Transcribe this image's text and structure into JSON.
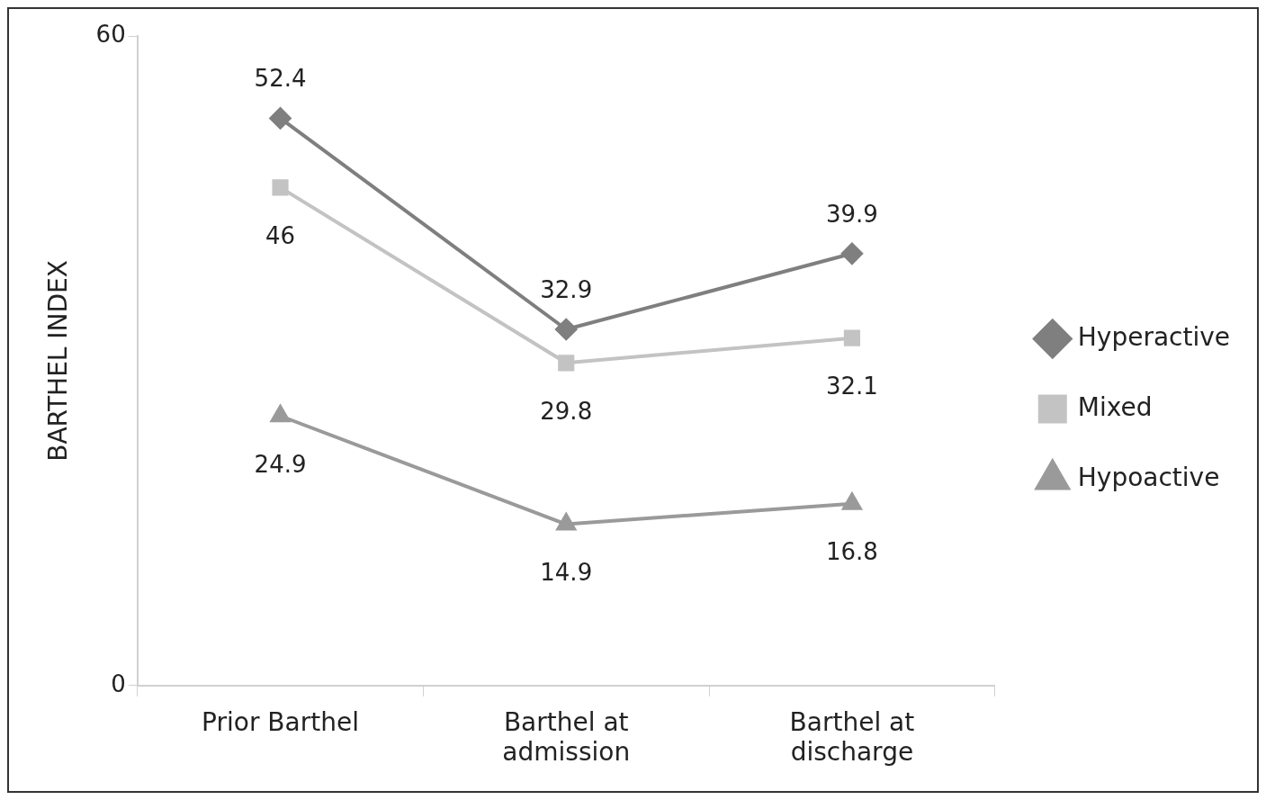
{
  "chart_data": {
    "type": "line",
    "ylabel": "BARTHEL INDEX",
    "categories": [
      "Prior Barthel",
      "Barthel at admission",
      "Barthel at discharge"
    ],
    "series": [
      {
        "name": "Hyperactive",
        "color": "#7f7f7f",
        "marker": "diamond",
        "values": [
          52.4,
          32.9,
          39.9
        ]
      },
      {
        "name": "Mixed",
        "color": "#c3c3c3",
        "marker": "square",
        "values": [
          46,
          29.8,
          32.1
        ]
      },
      {
        "name": "Hypoactive",
        "color": "#9a9a9a",
        "marker": "triangle",
        "values": [
          24.9,
          14.9,
          16.8
        ]
      }
    ],
    "ylim": [
      0,
      60
    ],
    "yticks": [
      0,
      60
    ],
    "grid": false,
    "legend": "right",
    "data_labels": true
  }
}
